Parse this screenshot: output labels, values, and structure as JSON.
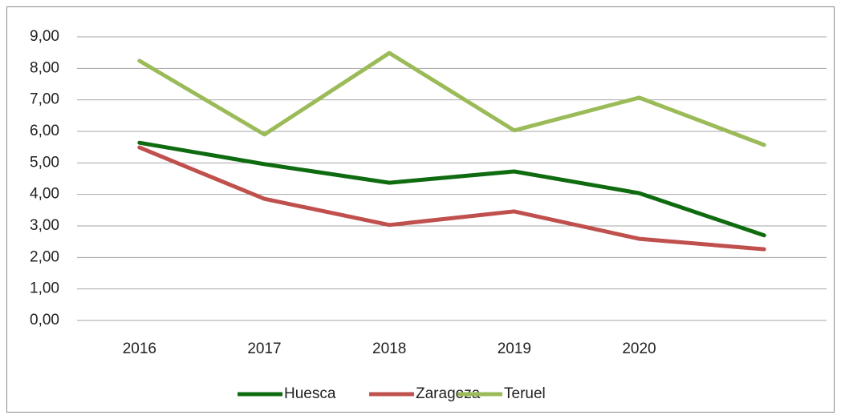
{
  "chart_data": {
    "type": "line",
    "categories": [
      "2016",
      "2017",
      "2018",
      "2019",
      "2020",
      null
    ],
    "series": [
      {
        "name": "Huesca",
        "color": "#0f6b0f",
        "values": [
          5.64,
          4.96,
          4.37,
          4.73,
          4.04,
          2.7
        ]
      },
      {
        "name": "Zaragoza",
        "color": "#c0504d",
        "values": [
          5.49,
          3.86,
          3.03,
          3.46,
          2.59,
          2.26
        ]
      },
      {
        "name": "Teruel",
        "color": "#9bbb59",
        "values": [
          8.24,
          5.9,
          8.49,
          6.03,
          7.07,
          5.57
        ]
      }
    ],
    "ylim": [
      0,
      9
    ],
    "yticks": [
      {
        "value": 0,
        "label": "0,00"
      },
      {
        "value": 1,
        "label": "1,00"
      },
      {
        "value": 2,
        "label": "2,00"
      },
      {
        "value": 3,
        "label": "3,00"
      },
      {
        "value": 4,
        "label": "4,00"
      },
      {
        "value": 5,
        "label": "5,00"
      },
      {
        "value": 6,
        "label": "6,00"
      },
      {
        "value": 7,
        "label": "7,00"
      },
      {
        "value": 8,
        "label": "8,00"
      },
      {
        "value": 9,
        "label": "9,00"
      }
    ],
    "grid": true,
    "legend": "bottom"
  }
}
